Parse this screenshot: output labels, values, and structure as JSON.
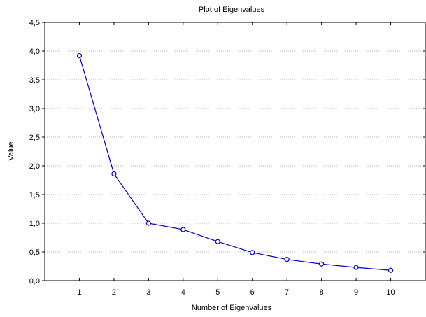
{
  "chart_data": {
    "type": "line",
    "title": "Plot of Eigenvalues",
    "xlabel": "Number of Eigenvalues",
    "ylabel": "Value",
    "x": [
      1,
      2,
      3,
      4,
      5,
      6,
      7,
      8,
      9,
      10
    ],
    "x_tick_labels": [
      "1",
      "2",
      "3",
      "4",
      "5",
      "6",
      "7",
      "8",
      "9",
      "10"
    ],
    "y_tick_labels": [
      "0,0",
      "0,5",
      "1,0",
      "1,5",
      "2,0",
      "2,5",
      "3,0",
      "3,5",
      "4,0",
      "4,5"
    ],
    "series": [
      {
        "values": [
          3.92,
          1.86,
          1.0,
          0.89,
          0.68,
          0.49,
          0.37,
          0.29,
          0.23,
          0.18
        ]
      }
    ],
    "xlim": [
      0,
      11
    ],
    "ylim": [
      0,
      4.5
    ],
    "y_tick_step": 0.5,
    "grid": "horizontal dotted",
    "legend": "none",
    "colors": {
      "series": "#0000cc",
      "grid": "#b0b0b0",
      "axes": "#000000"
    }
  }
}
